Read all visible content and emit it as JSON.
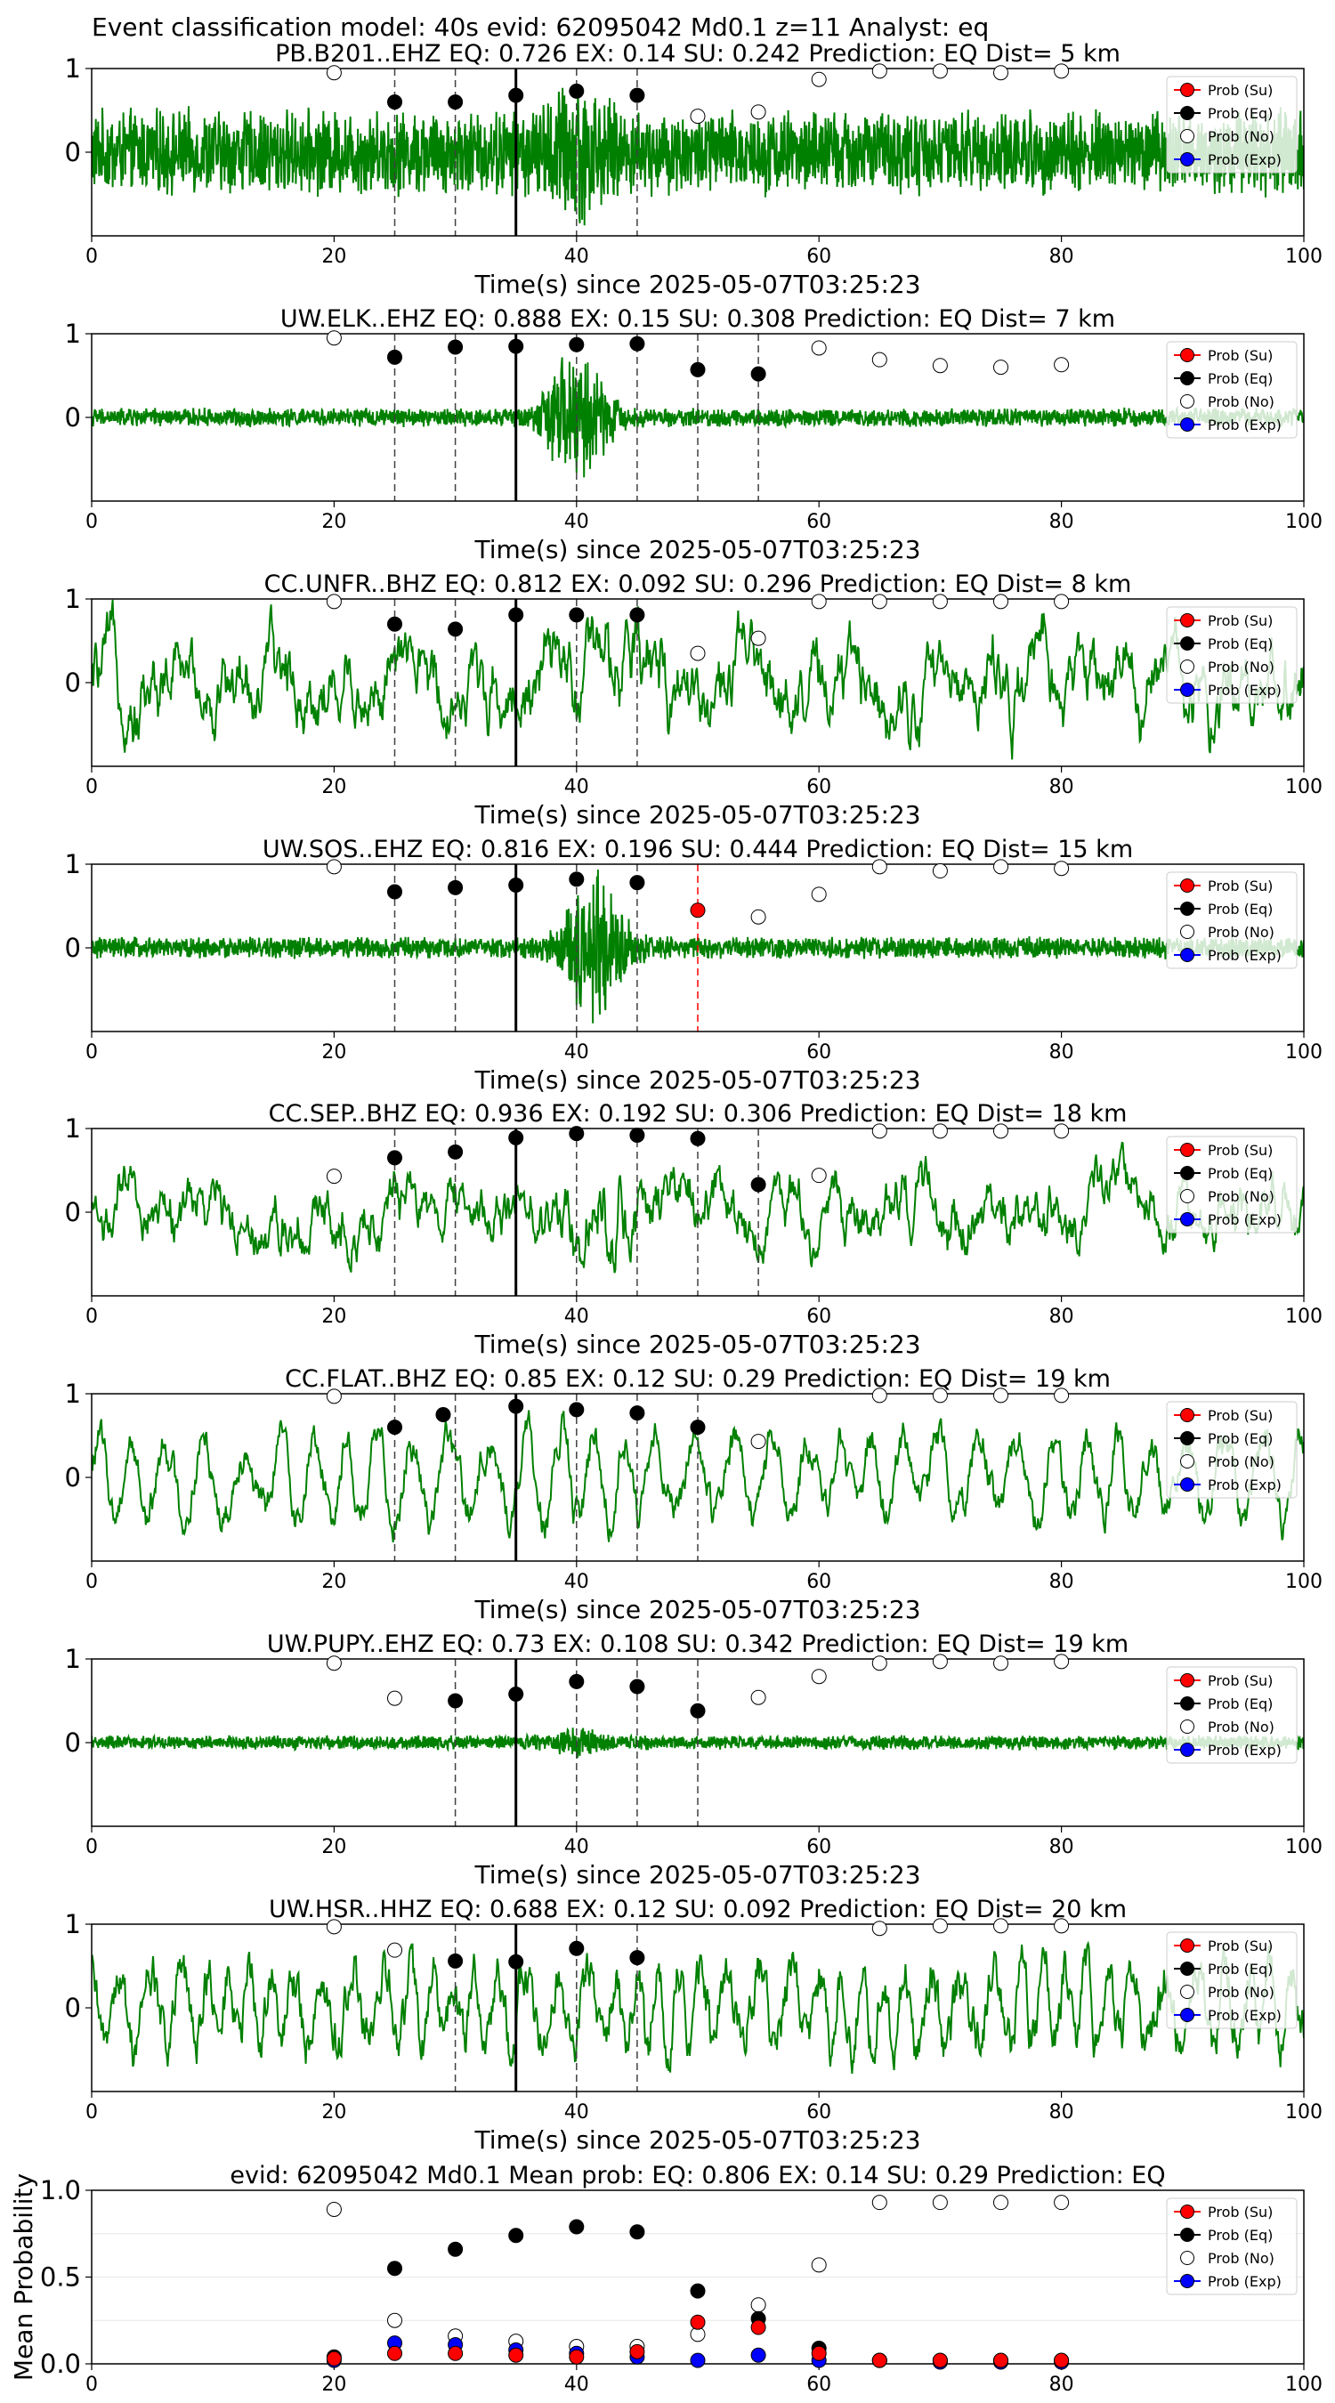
{
  "title": "Event classification model: 40s evid: 62095042 Md0.1 z=11 Analyst: eq",
  "legend": [
    "Prob (Su)",
    "Prob (Eq)",
    "Prob (No)",
    "Prob (Exp)"
  ],
  "colors": {
    "waveform": "#008000",
    "su": "#ff0000",
    "eq": "#000000",
    "no": "#ffffff",
    "exp": "#0000ff",
    "marker_eq": "#404040",
    "marker_su": "#ff0000"
  },
  "chart_data": [
    {
      "type": "line+scatter",
      "title": "PB.B201..EHZ   EQ: 0.726  EX: 0.14  SU: 0.242   Prediction: EQ    Dist= 5 km",
      "xlabel": "Time(s) since 2025-05-07T03:25:23",
      "xlim": [
        0,
        100
      ],
      "ylim": [
        -1,
        1
      ],
      "xticks": [
        "0",
        "20",
        "40",
        "60",
        "80",
        "100"
      ],
      "yticks": [
        "0",
        "1"
      ],
      "waveform": {
        "amplitude": 0.55,
        "style": "noise",
        "burst_center": 40,
        "burst_amp": 1.0
      },
      "markers": [
        {
          "x": 25,
          "kind": "eq"
        },
        {
          "x": 30,
          "kind": "eq"
        },
        {
          "x": 35,
          "kind": "origin"
        },
        {
          "x": 40,
          "kind": "eq"
        },
        {
          "x": 45,
          "kind": "eq"
        }
      ],
      "prob_eq": [
        [
          25,
          0.6
        ],
        [
          30,
          0.6
        ],
        [
          35,
          0.68
        ],
        [
          40,
          0.73
        ],
        [
          45,
          0.68
        ]
      ],
      "prob_no": [
        [
          20,
          0.95
        ],
        [
          50,
          0.43
        ],
        [
          55,
          0.48
        ],
        [
          60,
          0.87
        ],
        [
          65,
          0.97
        ],
        [
          70,
          0.97
        ],
        [
          75,
          0.95
        ],
        [
          80,
          0.97
        ]
      ],
      "prob_su": [],
      "prob_exp": []
    },
    {
      "type": "line+scatter",
      "title": "UW.ELK..EHZ   EQ: 0.888  EX: 0.15  SU: 0.308   Prediction: EQ    Dist= 7 km",
      "xlabel": "Time(s) since 2025-05-07T03:25:23",
      "xlim": [
        0,
        100
      ],
      "ylim": [
        -1,
        1
      ],
      "xticks": [
        "0",
        "20",
        "40",
        "60",
        "80",
        "100"
      ],
      "yticks": [
        "0",
        "1"
      ],
      "waveform": {
        "amplitude": 0.12,
        "style": "noise",
        "burst_center": 40,
        "burst_amp": 0.95
      },
      "markers": [
        {
          "x": 25,
          "kind": "eq"
        },
        {
          "x": 30,
          "kind": "eq"
        },
        {
          "x": 35,
          "kind": "origin"
        },
        {
          "x": 40,
          "kind": "eq"
        },
        {
          "x": 45,
          "kind": "eq"
        },
        {
          "x": 50,
          "kind": "eq"
        },
        {
          "x": 55,
          "kind": "eq"
        }
      ],
      "prob_eq": [
        [
          25,
          0.72
        ],
        [
          30,
          0.84
        ],
        [
          35,
          0.85
        ],
        [
          40,
          0.87
        ],
        [
          45,
          0.88
        ],
        [
          50,
          0.57
        ],
        [
          55,
          0.52
        ]
      ],
      "prob_no": [
        [
          20,
          0.95
        ],
        [
          60,
          0.83
        ],
        [
          65,
          0.69
        ],
        [
          70,
          0.62
        ],
        [
          75,
          0.6
        ],
        [
          80,
          0.63
        ]
      ],
      "prob_su": [],
      "prob_exp": []
    },
    {
      "type": "line+scatter",
      "title": "CC.UNFR..BHZ   EQ: 0.812  EX: 0.092  SU: 0.296   Prediction: EQ    Dist= 8 km",
      "xlabel": "Time(s) since 2025-05-07T03:25:23",
      "xlim": [
        0,
        100
      ],
      "ylim": [
        -1,
        1
      ],
      "xticks": [
        "0",
        "20",
        "40",
        "60",
        "80",
        "100"
      ],
      "yticks": [
        "0",
        "1"
      ],
      "waveform": {
        "amplitude": 0.65,
        "style": "smooth",
        "burst_center": 45,
        "burst_amp": 0.9
      },
      "markers": [
        {
          "x": 25,
          "kind": "eq"
        },
        {
          "x": 30,
          "kind": "eq"
        },
        {
          "x": 35,
          "kind": "origin"
        },
        {
          "x": 40,
          "kind": "eq"
        },
        {
          "x": 45,
          "kind": "eq"
        }
      ],
      "prob_eq": [
        [
          25,
          0.7
        ],
        [
          30,
          0.64
        ],
        [
          35,
          0.81
        ],
        [
          40,
          0.81
        ],
        [
          45,
          0.81
        ]
      ],
      "prob_no": [
        [
          20,
          0.97
        ],
        [
          50,
          0.35
        ],
        [
          55,
          0.53
        ],
        [
          60,
          0.97
        ],
        [
          65,
          0.97
        ],
        [
          70,
          0.97
        ],
        [
          75,
          0.97
        ],
        [
          80,
          0.97
        ]
      ],
      "prob_su": [],
      "prob_exp": []
    },
    {
      "type": "line+scatter",
      "title": "UW.SOS..EHZ   EQ: 0.816  EX: 0.196  SU: 0.444   Prediction: EQ    Dist= 15 km",
      "xlabel": "Time(s) since 2025-05-07T03:25:23",
      "xlim": [
        0,
        100
      ],
      "ylim": [
        -1,
        1
      ],
      "xticks": [
        "0",
        "20",
        "40",
        "60",
        "80",
        "100"
      ],
      "yticks": [
        "0",
        "1"
      ],
      "waveform": {
        "amplitude": 0.14,
        "style": "noise",
        "burst_center": 41.5,
        "burst_amp": 1.0
      },
      "markers": [
        {
          "x": 25,
          "kind": "eq"
        },
        {
          "x": 30,
          "kind": "eq"
        },
        {
          "x": 35,
          "kind": "origin"
        },
        {
          "x": 40,
          "kind": "eq"
        },
        {
          "x": 45,
          "kind": "eq"
        },
        {
          "x": 50,
          "kind": "su"
        }
      ],
      "prob_eq": [
        [
          25,
          0.67
        ],
        [
          30,
          0.72
        ],
        [
          35,
          0.75
        ],
        [
          40,
          0.82
        ],
        [
          45,
          0.78
        ]
      ],
      "prob_no": [
        [
          20,
          0.97
        ],
        [
          55,
          0.37
        ],
        [
          60,
          0.64
        ],
        [
          65,
          0.97
        ],
        [
          70,
          0.92
        ],
        [
          75,
          0.97
        ],
        [
          80,
          0.95
        ]
      ],
      "prob_su": [
        [
          50,
          0.45
        ]
      ],
      "prob_exp": []
    },
    {
      "type": "line+scatter",
      "title": "CC.SEP..BHZ   EQ: 0.936  EX: 0.192  SU: 0.306   Prediction: EQ    Dist= 18 km",
      "xlabel": "Time(s) since 2025-05-07T03:25:23",
      "xlim": [
        0,
        100
      ],
      "ylim": [
        -1,
        1
      ],
      "xticks": [
        "0",
        "20",
        "40",
        "60",
        "80",
        "100"
      ],
      "yticks": [
        "0",
        "1"
      ],
      "waveform": {
        "amplitude": 0.5,
        "style": "smooth",
        "burst_center": 42,
        "burst_amp": 0.8
      },
      "markers": [
        {
          "x": 25,
          "kind": "eq"
        },
        {
          "x": 30,
          "kind": "eq"
        },
        {
          "x": 35,
          "kind": "origin"
        },
        {
          "x": 40,
          "kind": "eq"
        },
        {
          "x": 45,
          "kind": "eq"
        },
        {
          "x": 50,
          "kind": "eq"
        },
        {
          "x": 55,
          "kind": "eq"
        }
      ],
      "prob_eq": [
        [
          25,
          0.65
        ],
        [
          30,
          0.72
        ],
        [
          35,
          0.89
        ],
        [
          40,
          0.94
        ],
        [
          45,
          0.92
        ],
        [
          50,
          0.88
        ],
        [
          55,
          0.33
        ]
      ],
      "prob_no": [
        [
          20,
          0.43
        ],
        [
          60,
          0.44
        ],
        [
          65,
          0.97
        ],
        [
          70,
          0.97
        ],
        [
          75,
          0.97
        ],
        [
          80,
          0.97
        ]
      ],
      "prob_su": [],
      "prob_exp": []
    },
    {
      "type": "line+scatter",
      "title": "CC.FLAT..BHZ   EQ: 0.85  EX: 0.12  SU: 0.29   Prediction: EQ    Dist= 19 km",
      "xlabel": "Time(s) since 2025-05-07T03:25:23",
      "xlim": [
        0,
        100
      ],
      "ylim": [
        -1,
        1
      ],
      "xticks": [
        "0",
        "20",
        "40",
        "60",
        "80",
        "100"
      ],
      "yticks": [
        "0",
        "1"
      ],
      "waveform": {
        "amplitude": 0.6,
        "style": "oscillation",
        "burst_center": 40,
        "burst_amp": 0.7
      },
      "markers": [
        {
          "x": 25,
          "kind": "eq"
        },
        {
          "x": 30,
          "kind": "eq"
        },
        {
          "x": 35,
          "kind": "origin"
        },
        {
          "x": 40,
          "kind": "eq"
        },
        {
          "x": 45,
          "kind": "eq"
        },
        {
          "x": 50,
          "kind": "eq"
        }
      ],
      "prob_eq": [
        [
          25,
          0.6
        ],
        [
          29,
          0.75
        ],
        [
          35,
          0.85
        ],
        [
          40,
          0.81
        ],
        [
          45,
          0.77
        ],
        [
          50,
          0.6
        ]
      ],
      "prob_no": [
        [
          20,
          0.97
        ],
        [
          55,
          0.43
        ],
        [
          65,
          0.98
        ],
        [
          70,
          0.98
        ],
        [
          75,
          0.98
        ],
        [
          80,
          0.98
        ]
      ],
      "prob_su": [],
      "prob_exp": []
    },
    {
      "type": "line+scatter",
      "title": "UW.PUPY..EHZ   EQ: 0.73  EX: 0.108  SU: 0.342   Prediction: EQ    Dist= 19 km",
      "xlabel": "Time(s) since 2025-05-07T03:25:23",
      "xlim": [
        0,
        100
      ],
      "ylim": [
        -1,
        1
      ],
      "xticks": [
        "0",
        "20",
        "40",
        "60",
        "80",
        "100"
      ],
      "yticks": [
        "0",
        "1"
      ],
      "waveform": {
        "amplitude": 0.09,
        "style": "noise",
        "burst_center": 40,
        "burst_amp": 0.2
      },
      "markers": [
        {
          "x": 30,
          "kind": "eq"
        },
        {
          "x": 35,
          "kind": "origin"
        },
        {
          "x": 40,
          "kind": "eq"
        },
        {
          "x": 45,
          "kind": "eq"
        },
        {
          "x": 50,
          "kind": "eq"
        }
      ],
      "prob_eq": [
        [
          30,
          0.5
        ],
        [
          35,
          0.58
        ],
        [
          40,
          0.73
        ],
        [
          45,
          0.67
        ],
        [
          50,
          0.38
        ]
      ],
      "prob_no": [
        [
          20,
          0.95
        ],
        [
          25,
          0.53
        ],
        [
          55,
          0.54
        ],
        [
          60,
          0.79
        ],
        [
          65,
          0.95
        ],
        [
          70,
          0.97
        ],
        [
          75,
          0.95
        ],
        [
          80,
          0.97
        ]
      ],
      "prob_su": [],
      "prob_exp": []
    },
    {
      "type": "line+scatter",
      "title": "UW.HSR..HHZ   EQ: 0.688  EX: 0.12  SU: 0.092   Prediction: EQ    Dist= 20 km",
      "xlabel": "Time(s) since 2025-05-07T03:25:23",
      "xlim": [
        0,
        100
      ],
      "ylim": [
        -1,
        1
      ],
      "xticks": [
        "0",
        "20",
        "40",
        "60",
        "80",
        "100"
      ],
      "yticks": [
        "0",
        "1"
      ],
      "waveform": {
        "amplitude": 0.6,
        "style": "oscillation_fast",
        "burst_center": 40,
        "burst_amp": 0.6
      },
      "markers": [
        {
          "x": 30,
          "kind": "eq"
        },
        {
          "x": 35,
          "kind": "origin"
        },
        {
          "x": 40,
          "kind": "eq"
        },
        {
          "x": 45,
          "kind": "eq"
        }
      ],
      "prob_eq": [
        [
          30,
          0.56
        ],
        [
          35,
          0.55
        ],
        [
          40,
          0.71
        ],
        [
          45,
          0.6
        ]
      ],
      "prob_no": [
        [
          20,
          0.97
        ],
        [
          25,
          0.69
        ],
        [
          65,
          0.95
        ],
        [
          70,
          0.98
        ],
        [
          75,
          0.98
        ],
        [
          80,
          0.98
        ]
      ],
      "prob_su": [],
      "prob_exp": []
    },
    {
      "type": "scatter",
      "title": "evid: 62095042  Md0.1   Mean prob:   EQ: 0.806  EX: 0.14  SU: 0.29   Prediction: EQ",
      "ylabel": "Mean Probability",
      "xlim": [
        0,
        100
      ],
      "ylim": [
        0,
        1
      ],
      "xticks": [
        "0",
        "20",
        "40",
        "60",
        "80",
        "100"
      ],
      "yticks": [
        "0.0",
        "0.5",
        "1.0"
      ],
      "prob_su": [
        [
          20,
          0.03
        ],
        [
          25,
          0.06
        ],
        [
          30,
          0.06
        ],
        [
          35,
          0.05
        ],
        [
          40,
          0.04
        ],
        [
          45,
          0.07
        ],
        [
          50,
          0.24
        ],
        [
          55,
          0.21
        ],
        [
          60,
          0.06
        ],
        [
          65,
          0.02
        ],
        [
          70,
          0.02
        ],
        [
          75,
          0.02
        ],
        [
          80,
          0.02
        ]
      ],
      "prob_eq": [
        [
          20,
          0.04
        ],
        [
          25,
          0.55
        ],
        [
          30,
          0.66
        ],
        [
          35,
          0.74
        ],
        [
          40,
          0.79
        ],
        [
          45,
          0.76
        ],
        [
          50,
          0.42
        ],
        [
          55,
          0.26
        ],
        [
          60,
          0.09
        ],
        [
          65,
          0.02
        ],
        [
          70,
          0.02
        ],
        [
          75,
          0.02
        ],
        [
          80,
          0.02
        ]
      ],
      "prob_no": [
        [
          20,
          0.89
        ],
        [
          25,
          0.25
        ],
        [
          30,
          0.16
        ],
        [
          35,
          0.13
        ],
        [
          40,
          0.1
        ],
        [
          45,
          0.1
        ],
        [
          50,
          0.17
        ],
        [
          55,
          0.34
        ],
        [
          60,
          0.57
        ],
        [
          65,
          0.93
        ],
        [
          70,
          0.93
        ],
        [
          75,
          0.93
        ],
        [
          80,
          0.93
        ]
      ],
      "prob_exp": [
        [
          20,
          0.02
        ],
        [
          25,
          0.12
        ],
        [
          30,
          0.11
        ],
        [
          35,
          0.08
        ],
        [
          40,
          0.06
        ],
        [
          45,
          0.04
        ],
        [
          50,
          0.02
        ],
        [
          55,
          0.05
        ],
        [
          60,
          0.02
        ],
        [
          65,
          0.02
        ],
        [
          70,
          0.01
        ],
        [
          75,
          0.01
        ],
        [
          80,
          0.01
        ]
      ]
    }
  ]
}
